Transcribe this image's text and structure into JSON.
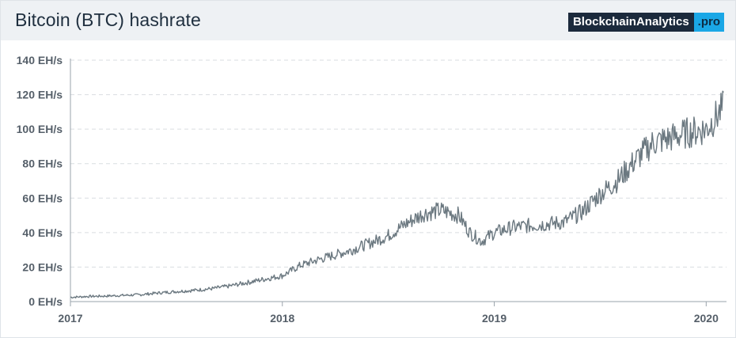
{
  "header": {
    "title": "Bitcoin (BTC) hashrate",
    "brand_main": "BlockchainAnalytics",
    "brand_tld": ".pro"
  },
  "colors": {
    "line": "#6b7880",
    "grid": "#d9dde1",
    "axis": "#9aa3ab",
    "header_bg": "#eef1f4",
    "brand_dark": "#1b2a3c",
    "brand_accent": "#1aa7e6"
  },
  "chart_data": {
    "type": "line",
    "title": "Bitcoin (BTC) hashrate",
    "xlabel": "",
    "ylabel": "",
    "unit": "EH/s",
    "ylim": [
      0,
      140
    ],
    "xlim": [
      "2017-01-01",
      "2020-02-05"
    ],
    "yticks": [
      0,
      20,
      40,
      60,
      80,
      100,
      120,
      140
    ],
    "ytick_labels": [
      "0 EH/s",
      "20 EH/s",
      "40 EH/s",
      "60 EH/s",
      "80 EH/s",
      "100 EH/s",
      "120 EH/s",
      "140 EH/s"
    ],
    "xticks": [
      "2017-01-01",
      "2018-01-01",
      "2019-01-01",
      "2020-01-01"
    ],
    "xtick_labels": [
      "2017",
      "2018",
      "2019",
      "2020"
    ],
    "grid": true,
    "legend": "none",
    "series": [
      {
        "x": [
          "2017-01-01",
          "2017-02-01",
          "2017-03-01",
          "2017-04-01",
          "2017-05-01",
          "2017-06-01",
          "2017-07-01",
          "2017-08-01",
          "2017-09-01",
          "2017-10-01",
          "2017-11-01",
          "2017-12-01",
          "2018-01-01",
          "2018-02-01",
          "2018-03-01",
          "2018-04-01",
          "2018-05-01",
          "2018-06-01",
          "2018-07-01",
          "2018-08-01",
          "2018-09-01",
          "2018-10-01",
          "2018-11-01",
          "2018-11-20",
          "2018-12-10",
          "2019-01-01",
          "2019-02-01",
          "2019-03-01",
          "2019-04-01",
          "2019-05-01",
          "2019-06-01",
          "2019-07-01",
          "2019-08-01",
          "2019-09-01",
          "2019-10-01",
          "2019-11-01",
          "2019-12-01",
          "2020-01-01",
          "2020-02-01"
        ],
        "values": [
          2.5,
          3,
          3.2,
          3.6,
          4,
          5,
          5.8,
          6.5,
          7.5,
          9,
          11,
          13,
          15,
          21,
          24,
          27,
          30,
          34,
          38,
          45,
          51,
          53,
          50,
          40,
          35,
          40,
          43,
          44,
          45,
          46,
          52,
          62,
          70,
          82,
          92,
          95,
          98,
          100,
          113
        ]
      }
    ]
  }
}
